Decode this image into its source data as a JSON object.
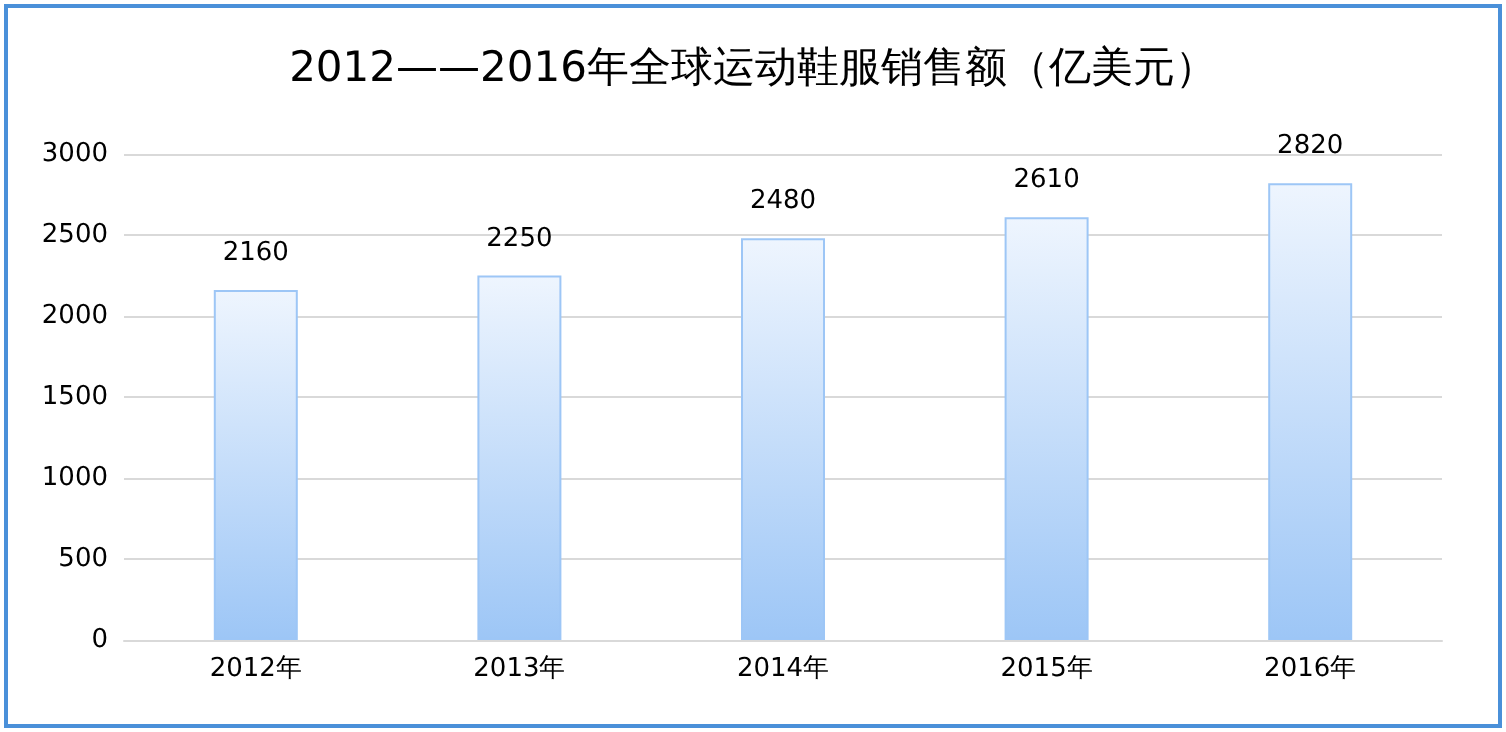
{
  "chart_data": {
    "type": "bar",
    "title": "2012——2016年全球运动鞋服销售额（亿美元）",
    "categories": [
      "2012年",
      "2013年",
      "2014年",
      "2015年",
      "2016年"
    ],
    "values": [
      2160,
      2250,
      2480,
      2610,
      2820
    ],
    "color": "#9dc6f6",
    "ylim": [
      0,
      3000
    ],
    "yticks": [
      0,
      500,
      1000,
      1500,
      2000,
      2500,
      3000
    ],
    "grid": "y",
    "data_labels": true
  }
}
